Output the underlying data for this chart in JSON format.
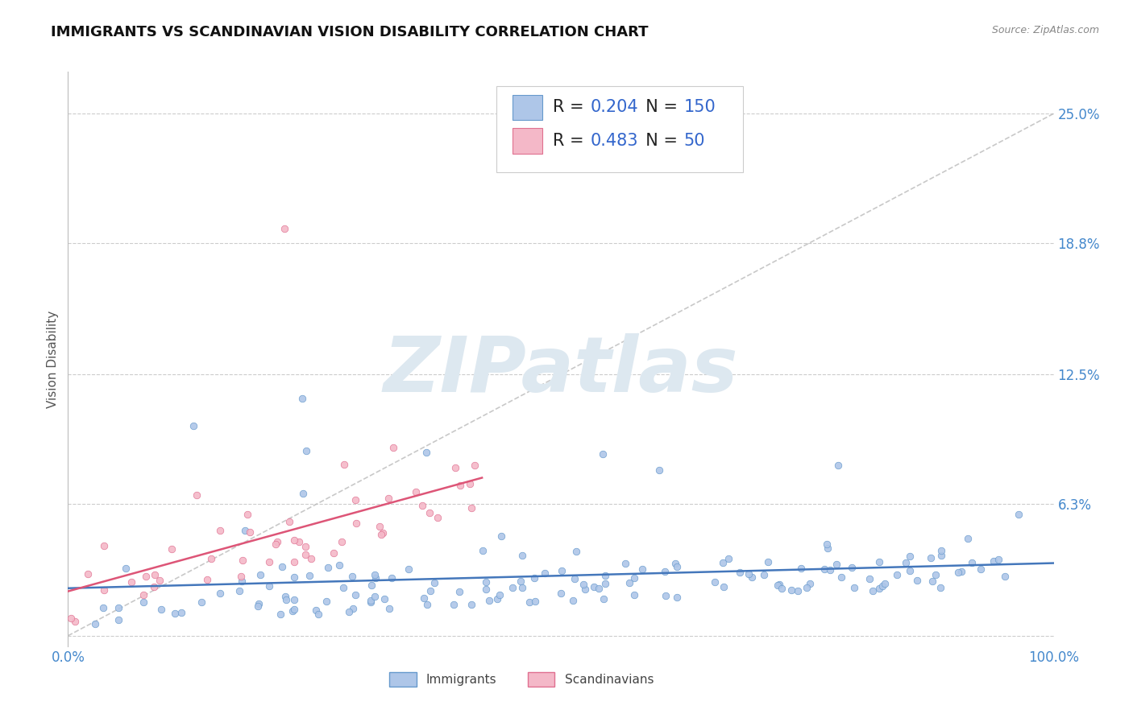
{
  "title": "IMMIGRANTS VS SCANDINAVIAN VISION DISABILITY CORRELATION CHART",
  "source": "Source: ZipAtlas.com",
  "ylabel": "Vision Disability",
  "xlim": [
    0.0,
    1.0
  ],
  "ylim": [
    -0.005,
    0.27
  ],
  "ytick_positions": [
    0.0,
    0.063,
    0.125,
    0.188,
    0.25
  ],
  "ytick_labels": [
    "",
    "6.3%",
    "12.5%",
    "18.8%",
    "25.0%"
  ],
  "xtick_positions": [
    0.0,
    1.0
  ],
  "xtick_labels": [
    "0.0%",
    "100.0%"
  ],
  "immigrants_R": 0.204,
  "immigrants_N": 150,
  "scandinavians_R": 0.483,
  "scandinavians_N": 50,
  "immigrant_color": "#aec6e8",
  "scandinavian_color": "#f4b8c8",
  "immigrant_edge_color": "#6699cc",
  "scandinavian_edge_color": "#e07090",
  "immigrant_trend_color": "#4477bb",
  "scandinavian_trend_color": "#dd5577",
  "dashed_line_color": "#bbbbbb",
  "watermark": "ZIPatlas",
  "watermark_color": "#dde8f0",
  "title_color": "#111111",
  "axis_label_color": "#555555",
  "tick_label_color": "#4488cc",
  "legend_value_color": "#3366cc",
  "legend_label_color": "#222222",
  "background_color": "#ffffff",
  "grid_color": "#cccccc",
  "title_fontsize": 13,
  "axis_label_fontsize": 11,
  "tick_fontsize": 12,
  "legend_fontsize": 15
}
